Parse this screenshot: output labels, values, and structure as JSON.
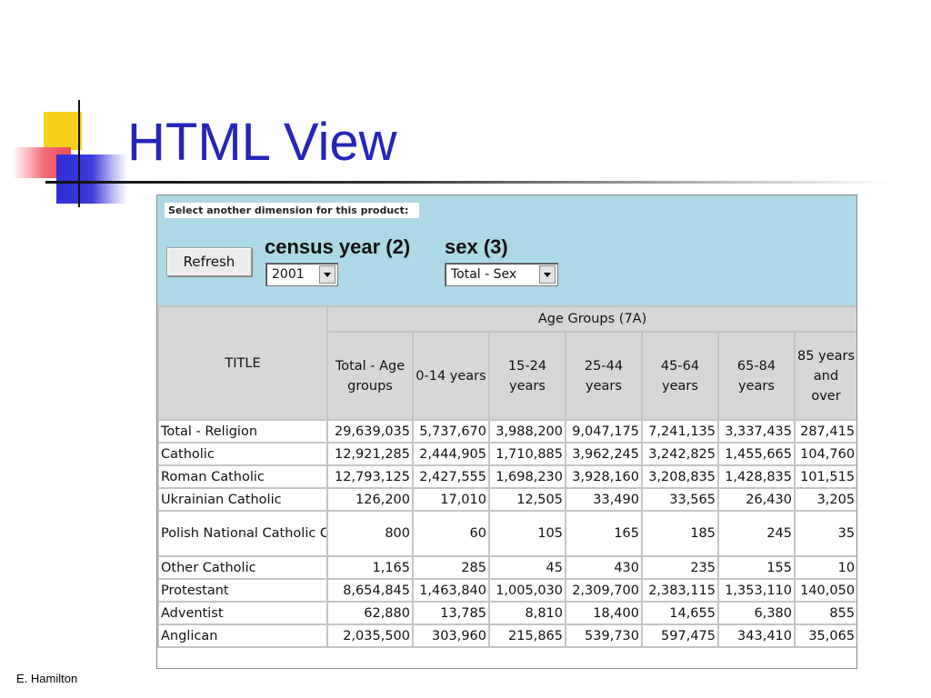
{
  "slide": {
    "title": "HTML View",
    "author": "E. Hamilton"
  },
  "dimensions": {
    "prompt": "Select another dimension for this product:",
    "refresh_label": "Refresh",
    "census_year": {
      "label": "census year (2)",
      "selected": "2001"
    },
    "sex": {
      "label": "sex (3)",
      "selected": "Total - Sex"
    }
  },
  "table": {
    "title_header": "TITLE",
    "group_header": "Age Groups (7A)",
    "columns": [
      "Total - Age groups",
      "0-14 years",
      "15-24 years",
      "25-44 years",
      "45-64 years",
      "65-84 years",
      "85 years and over"
    ],
    "rows": [
      {
        "label": "Total - Religion",
        "values": [
          "29,639,035",
          "5,737,670",
          "3,988,200",
          "9,047,175",
          "7,241,135",
          "3,337,435",
          "287,415"
        ]
      },
      {
        "label": "Catholic",
        "values": [
          "12,921,285",
          "2,444,905",
          "1,710,885",
          "3,962,245",
          "3,242,825",
          "1,455,665",
          "104,760"
        ]
      },
      {
        "label": "Roman Catholic",
        "values": [
          "12,793,125",
          "2,427,555",
          "1,698,230",
          "3,928,160",
          "3,208,835",
          "1,428,835",
          "101,515"
        ]
      },
      {
        "label": "Ukrainian Catholic",
        "values": [
          "126,200",
          "17,010",
          "12,505",
          "33,490",
          "33,565",
          "26,430",
          "3,205"
        ]
      },
      {
        "label": "Polish National Catholic Church",
        "values": [
          "800",
          "60",
          "105",
          "165",
          "185",
          "245",
          "35"
        ]
      },
      {
        "label": "Other Catholic",
        "values": [
          "1,165",
          "285",
          "45",
          "430",
          "235",
          "155",
          "10"
        ]
      },
      {
        "label": "Protestant",
        "values": [
          "8,654,845",
          "1,463,840",
          "1,005,030",
          "2,309,700",
          "2,383,115",
          "1,353,110",
          "140,050"
        ]
      },
      {
        "label": "Adventist",
        "values": [
          "62,880",
          "13,785",
          "8,810",
          "18,400",
          "14,655",
          "6,380",
          "855"
        ]
      },
      {
        "label": "Anglican",
        "values": [
          "2,035,500",
          "303,960",
          "215,865",
          "539,730",
          "597,475",
          "343,410",
          "35,065"
        ]
      }
    ]
  }
}
